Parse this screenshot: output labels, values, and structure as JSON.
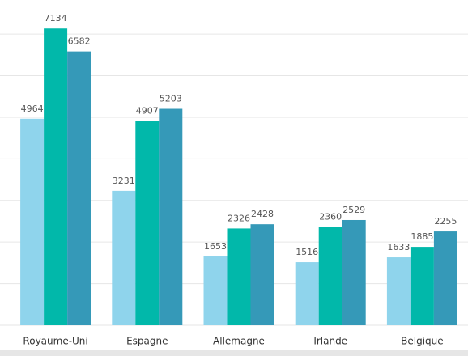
{
  "chart_data": {
    "type": "bar",
    "categories": [
      "Royaume-Uni",
      "Espagne",
      "Allemagne",
      "Irlande",
      "Belgique"
    ],
    "series": [
      {
        "color": "#8fd4ec",
        "values": [
          4964,
          3231,
          1653,
          1516,
          1633
        ]
      },
      {
        "color": "#01b8aa",
        "values": [
          7134,
          4907,
          2326,
          2360,
          1885
        ]
      },
      {
        "color": "#3599b8",
        "values": [
          6582,
          5203,
          2428,
          2529,
          2255
        ]
      }
    ],
    "ylim": [
      0,
      7800
    ],
    "yticks": [
      0,
      1000,
      2000,
      3000,
      4000,
      5000,
      6000,
      7000
    ],
    "grid": true
  }
}
